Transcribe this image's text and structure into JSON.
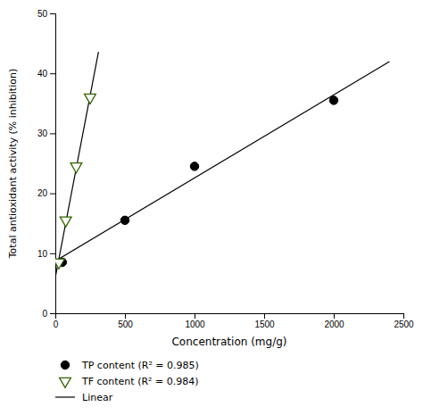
{
  "chart_data": {
    "type": "scatter",
    "xlabel": "Concentration (mg/g)",
    "ylabel": "Total antioxidant activity (% inhibition)",
    "xlim": [
      0,
      2500
    ],
    "ylim": [
      0,
      50
    ],
    "xticks": [
      0,
      500,
      1000,
      1500,
      2000,
      2500
    ],
    "yticks": [
      0,
      10,
      20,
      30,
      40,
      50
    ],
    "grid": false,
    "legend": "below",
    "series": [
      {
        "name": "TP content (R² = 0.985)",
        "type": "scatter",
        "marker": "circle",
        "color": "#000000",
        "x": [
          50,
          500,
          1000,
          2000
        ],
        "values": [
          8.5,
          15.5,
          24.5,
          35.5
        ]
      },
      {
        "name": "TF content (R² = 0.984)",
        "type": "scatter",
        "marker": "triangle-down-open",
        "color": "#336600",
        "x": [
          25,
          75,
          150,
          250
        ],
        "values": [
          8.5,
          15.5,
          24.5,
          36.0
        ]
      },
      {
        "name": "Linear",
        "type": "line",
        "color": "#000000",
        "x": [
          0,
          2400,
          null,
          0,
          310
        ],
        "values": [
          8.7022,
          41.9582,
          null,
          5.962,
          43.5663
        ]
      }
    ]
  }
}
